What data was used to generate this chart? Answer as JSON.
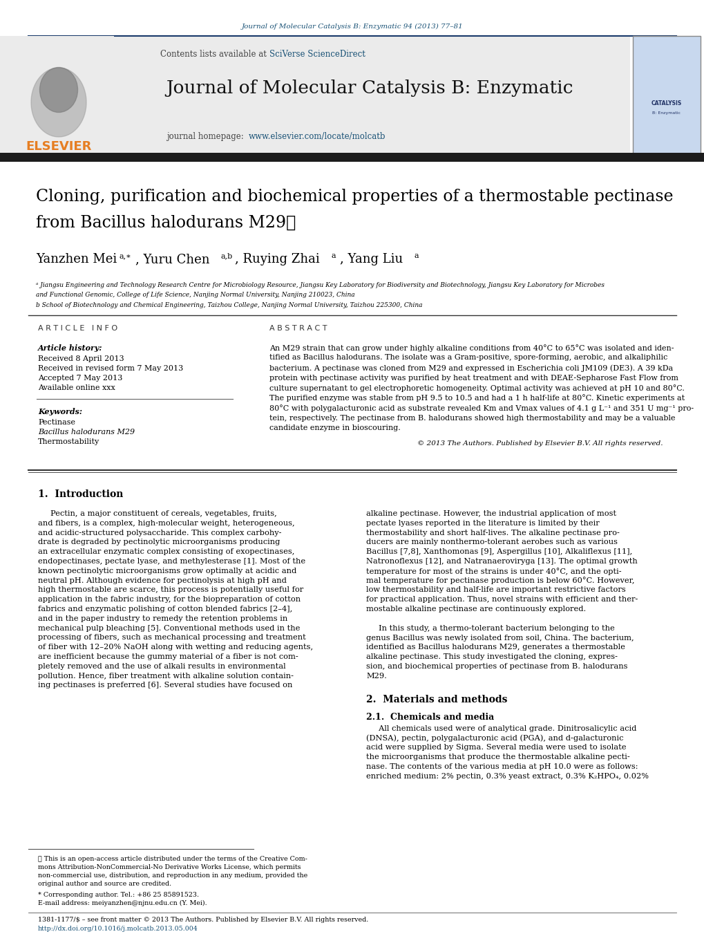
{
  "page_bg": "#ffffff",
  "top_journal_ref": "Journal of Molecular Catalysis B: Enzymatic 94 (2013) 77–81",
  "top_journal_ref_color": "#1a5276",
  "header_bg": "#ebebeb",
  "elsevier_color": "#e67e22",
  "link_color": "#1a5276",
  "footer_doi_color": "#1a5276",
  "text_color": "#000000",
  "article_title_line1": "Cloning, purification and biochemical properties of a thermostable pectinase",
  "article_title_line2": "from Bacillus halodurans M29⋆",
  "abstract_text_lines": [
    "An M29 strain that can grow under highly alkaline conditions from 40°C to 65°C was isolated and iden-",
    "tified as Bacillus halodurans. The isolate was a Gram-positive, spore-forming, aerobic, and alkaliphilic",
    "bacterium. A pectinase was cloned from M29 and expressed in Escherichia coli JM109 (DE3). A 39 kDa",
    "protein with pectinase activity was purified by heat treatment and with DEAE-Sepharose Fast Flow from",
    "culture supernatant to gel electrophoretic homogeneity. Optimal activity was achieved at pH 10 and 80°C.",
    "The purified enzyme was stable from pH 9.5 to 10.5 and had a 1 h half-life at 80°C. Kinetic experiments at",
    "80°C with polygalacturonic acid as substrate revealed Km and Vmax values of 4.1 g L⁻¹ and 351 U mg⁻¹ pro-",
    "tein, respectively. The pectinase from B. halodurans showed high thermostability and may be a valuable",
    "candidate enzyme in bioscouring."
  ],
  "copyright": "© 2013 The Authors. Published by Elsevier B.V. All rights reserved.",
  "intro_p1_lines": [
    "     Pectin, a major constituent of cereals, vegetables, fruits,",
    "and fibers, is a complex, high-molecular weight, heterogeneous,",
    "and acidic-structured polysaccharide. This complex carbohy-",
    "drate is degraded by pectinolytic microorganisms producing",
    "an extracellular enzymatic complex consisting of exopectinases,",
    "endopectinases, pectate lyase, and methylesterase [1]. Most of the",
    "known pectinolytic microorganisms grow optimally at acidic and",
    "neutral pH. Although evidence for pectinolysis at high pH and",
    "high thermostable are scarce, this process is potentially useful for",
    "application in the fabric industry, for the biopreparation of cotton",
    "fabrics and enzymatic polishing of cotton blended fabrics [2–4],",
    "and in the paper industry to remedy the retention problems in",
    "mechanical pulp bleaching [5]. Conventional methods used in the",
    "processing of fibers, such as mechanical processing and treatment",
    "of fiber with 12–20% NaOH along with wetting and reducing agents,",
    "are inefficient because the gummy material of a fiber is not com-",
    "pletely removed and the use of alkali results in environmental",
    "pollution. Hence, fiber treatment with alkaline solution contain-",
    "ing pectinases is preferred [6]. Several studies have focused on"
  ],
  "intro_p2_lines": [
    "alkaline pectinase. However, the industrial application of most",
    "pectate lyases reported in the literature is limited by their",
    "thermostability and short half-lives. The alkaline pectinase pro-",
    "ducers are mainly nonthermo-tolerant aerobes such as various",
    "Bacillus [7,8], Xanthomonas [9], Aspergillus [10], Alkaliflexus [11],",
    "Natronoflexus [12], and Natranaeroviryga [13]. The optimal growth",
    "temperature for most of the strains is under 40°C, and the opti-",
    "mal temperature for pectinase production is below 60°C. However,",
    "low thermostability and half-life are important restrictive factors",
    "for practical application. Thus, novel strains with efficient and ther-",
    "mostable alkaline pectinase are continuously explored."
  ],
  "intro_p3_lines": [
    "     In this study, a thermo-tolerant bacterium belonging to the",
    "genus Bacillus was newly isolated from soil, China. The bacterium,",
    "identified as Bacillus halodurans M29, generates a thermostable",
    "alkaline pectinase. This study investigated the cloning, expres-",
    "sion, and biochemical properties of pectinase from B. halodurans",
    "M29."
  ],
  "sec21_lines": [
    "     All chemicals used were of analytical grade. Dinitrosalicylic acid",
    "(DNSA), pectin, polygalacturonic acid (PGA), and d-galacturonic",
    "acid were supplied by Sigma. Several media were used to isolate",
    "the microorganisms that produce the thermostable alkaline pecti-",
    "nase. The contents of the various media at pH 10.0 were as follows:",
    "enriched medium: 2% pectin, 0.3% yeast extract, 0.3% K₂HPO₄, 0.02%"
  ],
  "footnote_lines": [
    "⋆ This is an open-access article distributed under the terms of the Creative Com-",
    "mons Attribution-NonCommercial-No Derivative Works License, which permits",
    "non-commercial use, distribution, and reproduction in any medium, provided the",
    "original author and source are credited."
  ],
  "footer_issn": "1381-1177/$ – see front matter © 2013 The Authors. Published by Elsevier B.V. All rights reserved.",
  "footer_doi": "http://dx.doi.org/10.1016/j.molcatb.2013.05.004"
}
